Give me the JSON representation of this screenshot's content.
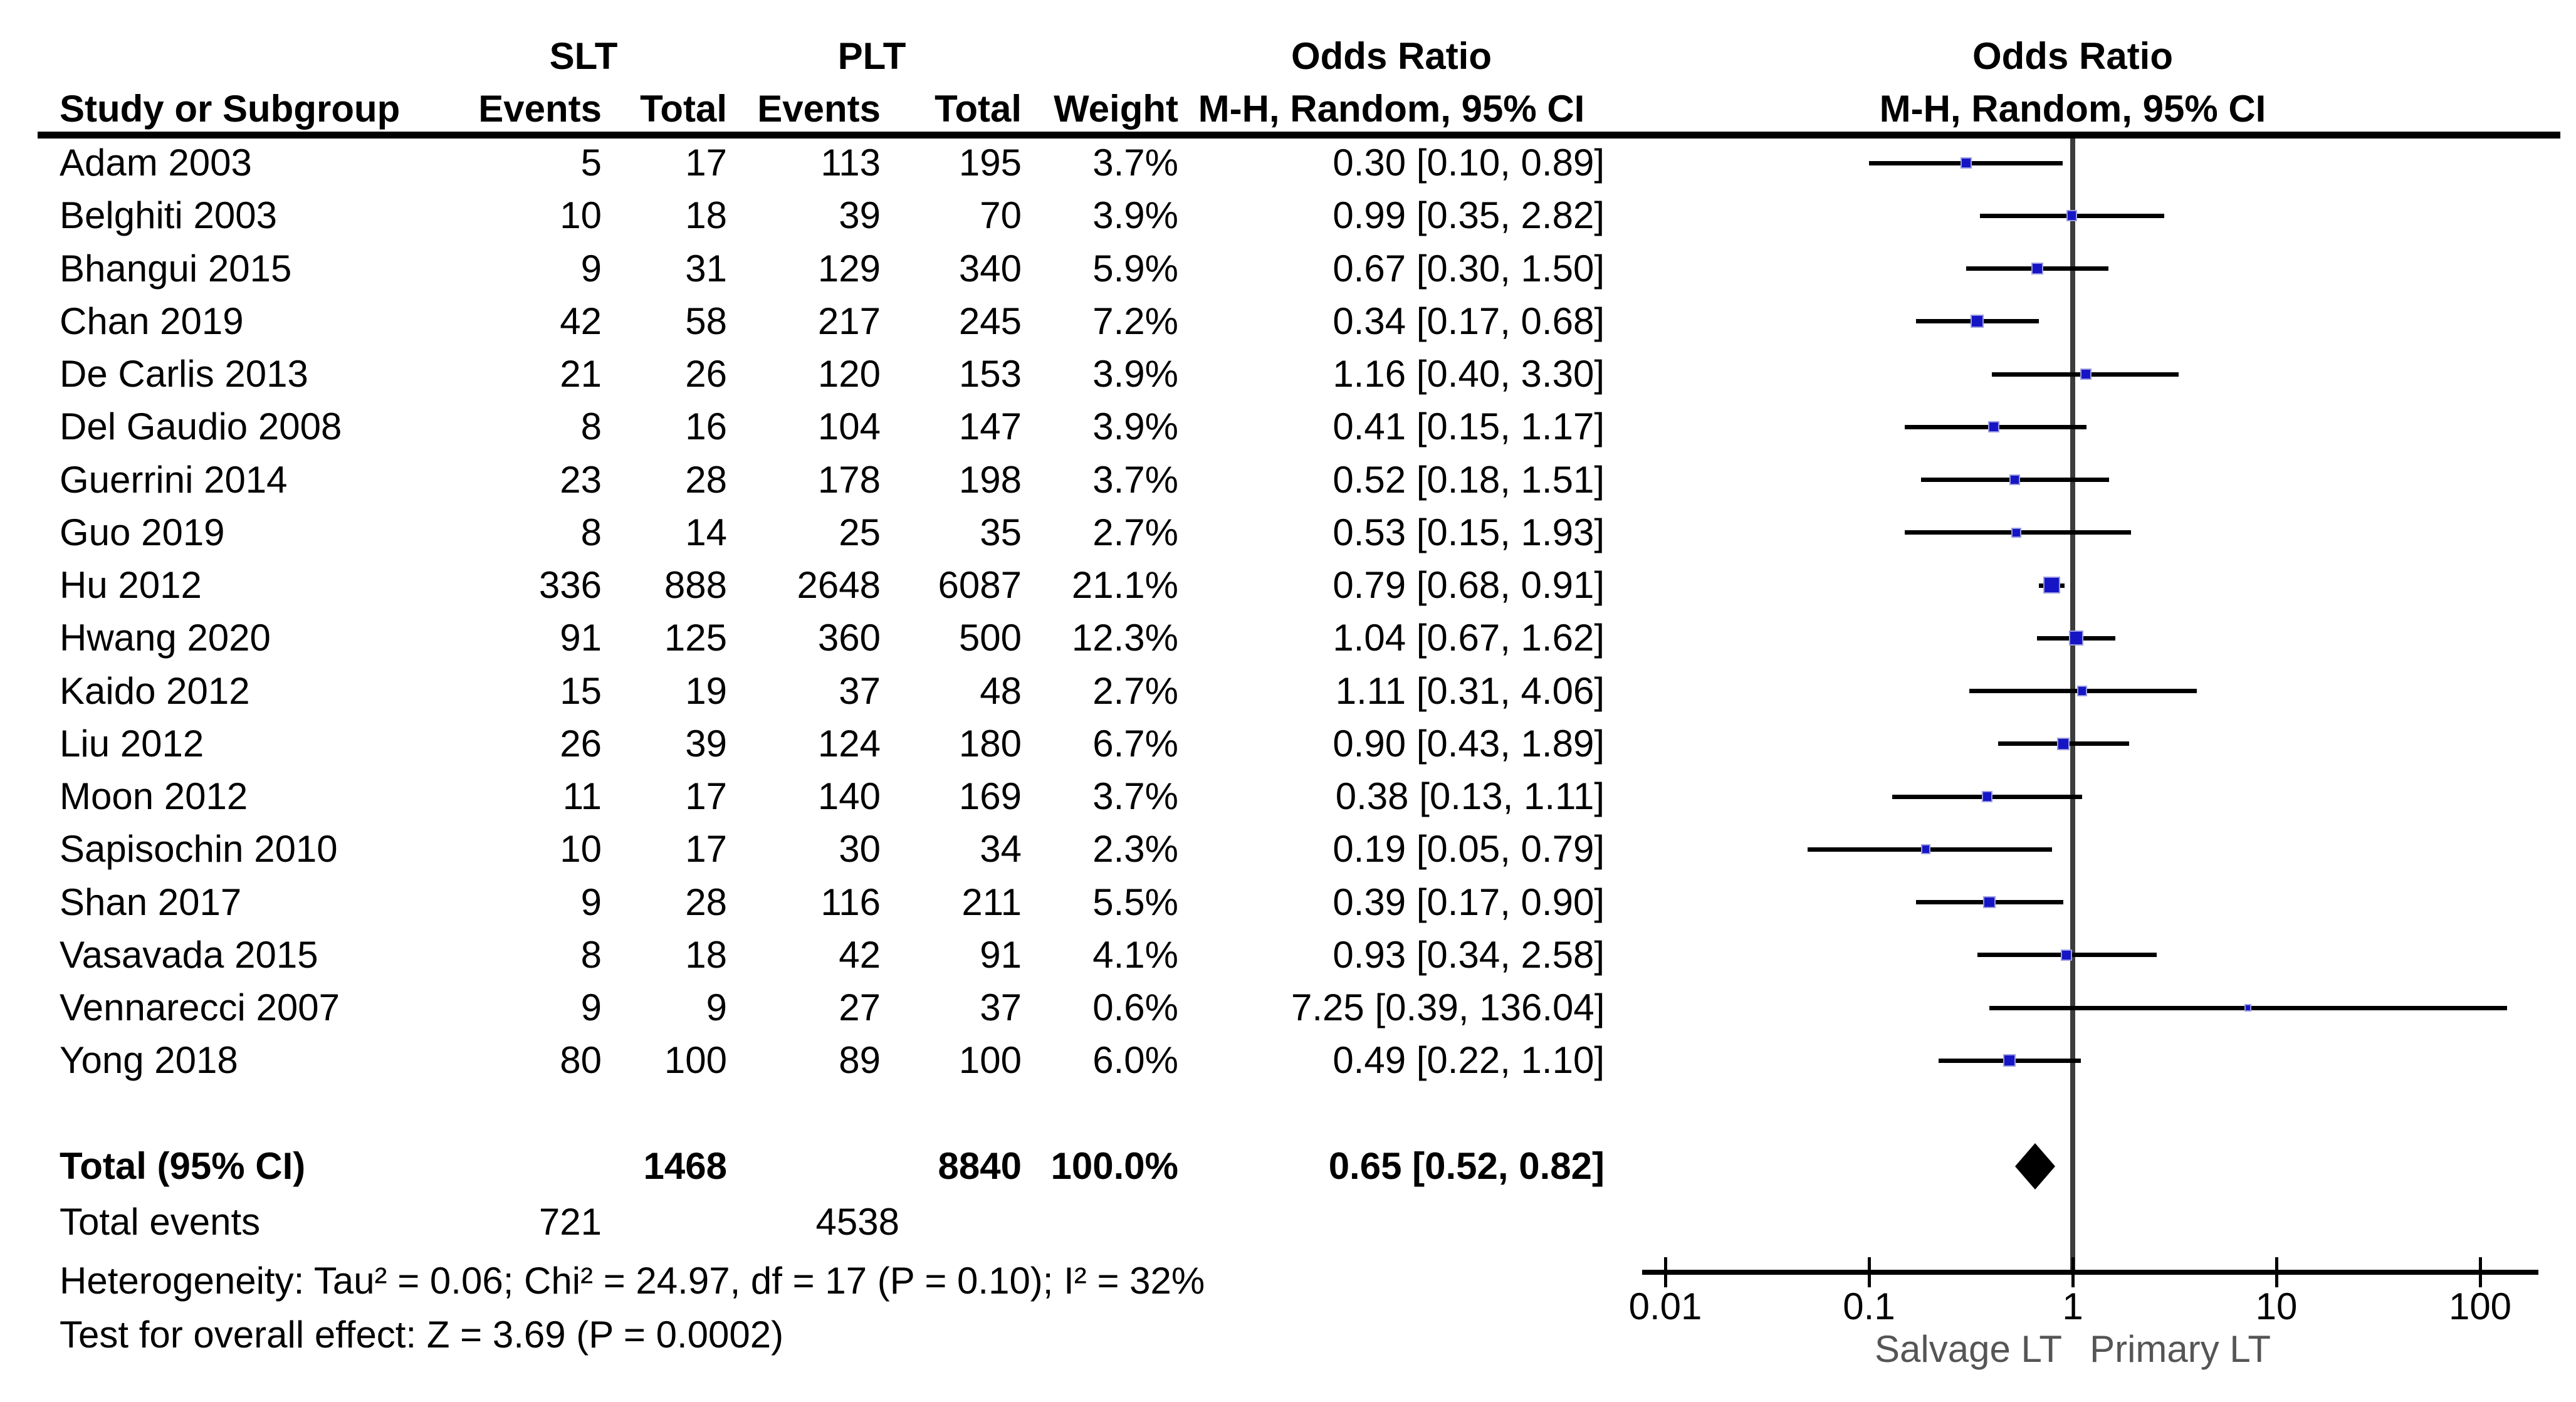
{
  "header": {
    "study_col": "Study or Subgroup",
    "group1": "SLT",
    "group2": "PLT",
    "events": "Events",
    "total": "Total",
    "weight": "Weight",
    "or_line1": "Odds Ratio",
    "or_line2": "M-H, Random, 95% CI",
    "plot_line1": "Odds Ratio",
    "plot_line2": "M-H, Random, 95% CI"
  },
  "chart_data": {
    "type": "forest",
    "effect_measure": "Odds Ratio (M-H, Random, 95% CI)",
    "x_axis": {
      "scale": "log",
      "ticks": [
        0.01,
        0.1,
        1,
        10,
        100
      ],
      "tick_labels": [
        "0.01",
        "0.1",
        "1",
        "10",
        "100"
      ],
      "left_label": "Salvage LT",
      "right_label": "Primary LT"
    },
    "studies": [
      {
        "name": "Adam 2003",
        "slt_events": "5",
        "slt_total": "17",
        "plt_events": "113",
        "plt_total": "195",
        "weight": "3.7%",
        "weight_pct": 3.7,
        "or": 0.3,
        "ci_low": 0.1,
        "ci_high": 0.89,
        "or_ci_text": "0.30 [0.10, 0.89]"
      },
      {
        "name": "Belghiti 2003",
        "slt_events": "10",
        "slt_total": "18",
        "plt_events": "39",
        "plt_total": "70",
        "weight": "3.9%",
        "weight_pct": 3.9,
        "or": 0.99,
        "ci_low": 0.35,
        "ci_high": 2.82,
        "or_ci_text": "0.99 [0.35, 2.82]"
      },
      {
        "name": "Bhangui 2015",
        "slt_events": "9",
        "slt_total": "31",
        "plt_events": "129",
        "plt_total": "340",
        "weight": "5.9%",
        "weight_pct": 5.9,
        "or": 0.67,
        "ci_low": 0.3,
        "ci_high": 1.5,
        "or_ci_text": "0.67 [0.30, 1.50]"
      },
      {
        "name": "Chan 2019",
        "slt_events": "42",
        "slt_total": "58",
        "plt_events": "217",
        "plt_total": "245",
        "weight": "7.2%",
        "weight_pct": 7.2,
        "or": 0.34,
        "ci_low": 0.17,
        "ci_high": 0.68,
        "or_ci_text": "0.34 [0.17, 0.68]"
      },
      {
        "name": "De Carlis 2013",
        "slt_events": "21",
        "slt_total": "26",
        "plt_events": "120",
        "plt_total": "153",
        "weight": "3.9%",
        "weight_pct": 3.9,
        "or": 1.16,
        "ci_low": 0.4,
        "ci_high": 3.3,
        "or_ci_text": "1.16 [0.40, 3.30]"
      },
      {
        "name": "Del Gaudio 2008",
        "slt_events": "8",
        "slt_total": "16",
        "plt_events": "104",
        "plt_total": "147",
        "weight": "3.9%",
        "weight_pct": 3.9,
        "or": 0.41,
        "ci_low": 0.15,
        "ci_high": 1.17,
        "or_ci_text": "0.41 [0.15, 1.17]"
      },
      {
        "name": "Guerrini 2014",
        "slt_events": "23",
        "slt_total": "28",
        "plt_events": "178",
        "plt_total": "198",
        "weight": "3.7%",
        "weight_pct": 3.7,
        "or": 0.52,
        "ci_low": 0.18,
        "ci_high": 1.51,
        "or_ci_text": "0.52 [0.18, 1.51]"
      },
      {
        "name": "Guo 2019",
        "slt_events": "8",
        "slt_total": "14",
        "plt_events": "25",
        "plt_total": "35",
        "weight": "2.7%",
        "weight_pct": 2.7,
        "or": 0.53,
        "ci_low": 0.15,
        "ci_high": 1.93,
        "or_ci_text": "0.53 [0.15, 1.93]"
      },
      {
        "name": "Hu 2012",
        "slt_events": "336",
        "slt_total": "888",
        "plt_events": "2648",
        "plt_total": "6087",
        "weight": "21.1%",
        "weight_pct": 21.1,
        "or": 0.79,
        "ci_low": 0.68,
        "ci_high": 0.91,
        "or_ci_text": "0.79 [0.68, 0.91]"
      },
      {
        "name": "Hwang 2020",
        "slt_events": "91",
        "slt_total": "125",
        "plt_events": "360",
        "plt_total": "500",
        "weight": "12.3%",
        "weight_pct": 12.3,
        "or": 1.04,
        "ci_low": 0.67,
        "ci_high": 1.62,
        "or_ci_text": "1.04 [0.67, 1.62]"
      },
      {
        "name": "Kaido 2012",
        "slt_events": "15",
        "slt_total": "19",
        "plt_events": "37",
        "plt_total": "48",
        "weight": "2.7%",
        "weight_pct": 2.7,
        "or": 1.11,
        "ci_low": 0.31,
        "ci_high": 4.06,
        "or_ci_text": "1.11 [0.31, 4.06]"
      },
      {
        "name": "Liu 2012",
        "slt_events": "26",
        "slt_total": "39",
        "plt_events": "124",
        "plt_total": "180",
        "weight": "6.7%",
        "weight_pct": 6.7,
        "or": 0.9,
        "ci_low": 0.43,
        "ci_high": 1.89,
        "or_ci_text": "0.90 [0.43, 1.89]"
      },
      {
        "name": "Moon 2012",
        "slt_events": "11",
        "slt_total": "17",
        "plt_events": "140",
        "plt_total": "169",
        "weight": "3.7%",
        "weight_pct": 3.7,
        "or": 0.38,
        "ci_low": 0.13,
        "ci_high": 1.11,
        "or_ci_text": "0.38 [0.13, 1.11]"
      },
      {
        "name": "Sapisochin 2010",
        "slt_events": "10",
        "slt_total": "17",
        "plt_events": "30",
        "plt_total": "34",
        "weight": "2.3%",
        "weight_pct": 2.3,
        "or": 0.19,
        "ci_low": 0.05,
        "ci_high": 0.79,
        "or_ci_text": "0.19 [0.05, 0.79]"
      },
      {
        "name": "Shan 2017",
        "slt_events": "9",
        "slt_total": "28",
        "plt_events": "116",
        "plt_total": "211",
        "weight": "5.5%",
        "weight_pct": 5.5,
        "or": 0.39,
        "ci_low": 0.17,
        "ci_high": 0.9,
        "or_ci_text": "0.39 [0.17, 0.90]"
      },
      {
        "name": "Vasavada 2015",
        "slt_events": "8",
        "slt_total": "18",
        "plt_events": "42",
        "plt_total": "91",
        "weight": "4.1%",
        "weight_pct": 4.1,
        "or": 0.93,
        "ci_low": 0.34,
        "ci_high": 2.58,
        "or_ci_text": "0.93 [0.34, 2.58]"
      },
      {
        "name": "Vennarecci 2007",
        "slt_events": "9",
        "slt_total": "9",
        "plt_events": "27",
        "plt_total": "37",
        "weight": "0.6%",
        "weight_pct": 0.6,
        "or": 7.25,
        "ci_low": 0.39,
        "ci_high": 136.04,
        "or_ci_text": "7.25 [0.39, 136.04]"
      },
      {
        "name": "Yong 2018",
        "slt_events": "80",
        "slt_total": "100",
        "plt_events": "89",
        "plt_total": "100",
        "weight": "6.0%",
        "weight_pct": 6.0,
        "or": 0.49,
        "ci_low": 0.22,
        "ci_high": 1.1,
        "or_ci_text": "0.49 [0.22, 1.10]"
      }
    ],
    "total": {
      "label": "Total (95% CI)",
      "slt_total": "1468",
      "plt_total": "8840",
      "weight": "100.0%",
      "or": 0.65,
      "ci_low": 0.52,
      "ci_high": 0.82,
      "or_ci_text": "0.65 [0.52, 0.82]"
    },
    "total_events": {
      "label": "Total events",
      "slt": "721",
      "plt": "4538"
    },
    "heterogeneity": "Heterogeneity: Tau² = 0.06; Chi² = 24.97, df = 17 (P = 0.10); I² = 32%",
    "overall_effect": "Test for overall effect: Z = 3.69 (P = 0.0002)",
    "colors": {
      "marker_fill": "#1515C6",
      "marker_border": "#9A9AE0",
      "ci_line": "#000000",
      "null_line": "#3C3C3C",
      "axis": "#000000",
      "diamond": "#000000"
    }
  }
}
